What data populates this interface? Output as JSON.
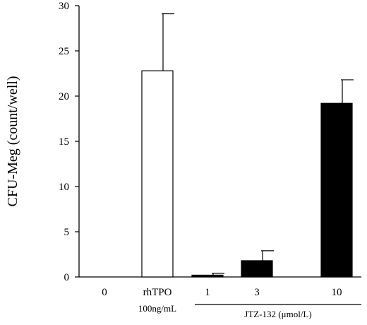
{
  "chart_data": {
    "type": "bar",
    "title": "",
    "xlabel": "",
    "ylabel": "CFU-Meg (count/well)",
    "ylim": [
      0,
      30
    ],
    "yticks": [
      0,
      5,
      10,
      15,
      20,
      25,
      30
    ],
    "grid": false,
    "categories": [
      "0",
      "rhTPO",
      "1",
      "3",
      "10"
    ],
    "values": [
      0,
      22.8,
      0.2,
      1.8,
      19.2
    ],
    "errors": [
      0,
      6.3,
      0.2,
      1.1,
      2.6
    ],
    "fills": [
      "#ffffff",
      "#ffffff",
      "#000000",
      "#000000",
      "#000000"
    ],
    "sublabels": {
      "rhTPO": "100ng/mL",
      "group": "JTZ-132 (μmol/L)"
    }
  }
}
